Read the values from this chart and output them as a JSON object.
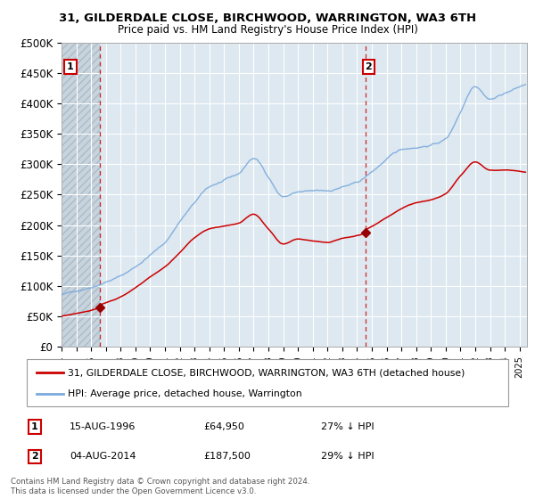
{
  "title_line1": "31, GILDERDALE CLOSE, BIRCHWOOD, WARRINGTON, WA3 6TH",
  "title_line2": "Price paid vs. HM Land Registry's House Price Index (HPI)",
  "ylim": [
    0,
    500000
  ],
  "yticks": [
    0,
    50000,
    100000,
    150000,
    200000,
    250000,
    300000,
    350000,
    400000,
    450000,
    500000
  ],
  "ytick_labels": [
    "£0",
    "£50K",
    "£100K",
    "£150K",
    "£200K",
    "£250K",
    "£300K",
    "£350K",
    "£400K",
    "£450K",
    "£500K"
  ],
  "xlim_start": 1994.0,
  "xlim_end": 2025.5,
  "sale1_x": 1996.619,
  "sale1_y": 64950,
  "sale2_x": 2014.586,
  "sale2_y": 187500,
  "sale1_label": "1",
  "sale2_label": "2",
  "sale1_date": "15-AUG-1996",
  "sale1_price": "£64,950",
  "sale1_hpi": "27% ↓ HPI",
  "sale2_date": "04-AUG-2014",
  "sale2_price": "£187,500",
  "sale2_hpi": "29% ↓ HPI",
  "line_color_property": "#cc0000",
  "line_color_hpi": "#7aaadd",
  "marker_color": "#990000",
  "legend_label_property": "31, GILDERDALE CLOSE, BIRCHWOOD, WARRINGTON, WA3 6TH (detached house)",
  "legend_label_hpi": "HPI: Average price, detached house, Warrington",
  "footnote": "Contains HM Land Registry data © Crown copyright and database right 2024.\nThis data is licensed under the Open Government Licence v3.0.",
  "background_chart": "#dde8f0",
  "background_hatch_color": "#c8d4dc",
  "grid_color": "#ffffff",
  "dashed_line_color": "#cc0000",
  "hpi_keypoints_x": [
    1994,
    1995,
    1996,
    1997,
    1998,
    1999,
    2000,
    2001,
    2002,
    2003,
    2004,
    2005,
    2006,
    2007,
    2008,
    2009,
    2010,
    2011,
    2012,
    2013,
    2014,
    2015,
    2016,
    2017,
    2018,
    2019,
    2020,
    2021,
    2022,
    2023,
    2024,
    2025
  ],
  "hpi_keypoints_y": [
    85000,
    92000,
    100000,
    110000,
    120000,
    135000,
    155000,
    175000,
    210000,
    240000,
    265000,
    275000,
    285000,
    310000,
    280000,
    248000,
    255000,
    255000,
    255000,
    262000,
    268000,
    285000,
    305000,
    320000,
    325000,
    330000,
    340000,
    385000,
    430000,
    410000,
    420000,
    430000
  ],
  "prop_keypoints_x": [
    1994,
    1995,
    1996,
    1997,
    1998,
    1999,
    2000,
    2001,
    2002,
    2003,
    2004,
    2005,
    2006,
    2007,
    2008,
    2009,
    2010,
    2011,
    2012,
    2013,
    2014,
    2015,
    2016,
    2017,
    2018,
    2019,
    2020,
    2021,
    2022,
    2023,
    2024,
    2025
  ],
  "prop_keypoints_y": [
    55000,
    60000,
    66000,
    75000,
    85000,
    100000,
    118000,
    135000,
    160000,
    185000,
    200000,
    205000,
    210000,
    225000,
    200000,
    175000,
    183000,
    180000,
    178000,
    185000,
    190000,
    200000,
    215000,
    230000,
    240000,
    245000,
    255000,
    285000,
    308000,
    295000,
    295000,
    292000
  ]
}
